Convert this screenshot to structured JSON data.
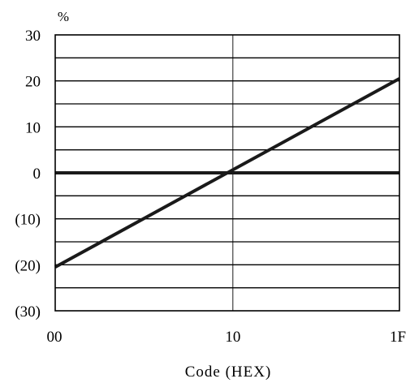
{
  "chart_data": {
    "type": "line",
    "unit_label": "%",
    "xlabel": "Code (HEX)",
    "x_ticks": [
      {
        "value": 0,
        "label": "00"
      },
      {
        "value": 16,
        "label": "10"
      },
      {
        "value": 31,
        "label": "1F"
      }
    ],
    "y_ticks": [
      {
        "value": 30,
        "label": "30"
      },
      {
        "value": 20,
        "label": "20"
      },
      {
        "value": 10,
        "label": "10"
      },
      {
        "value": 0,
        "label": "0"
      },
      {
        "value": -10,
        "label": "(10)"
      },
      {
        "value": -20,
        "label": "(20)"
      },
      {
        "value": -30,
        "label": "(30)"
      }
    ],
    "xlim": [
      0,
      31
    ],
    "ylim": [
      -30,
      30
    ],
    "grid": {
      "y_step": 5,
      "x_lines": [
        16
      ]
    },
    "reference_line_y": 0,
    "series": [
      {
        "x": [
          0,
          31
        ],
        "y": [
          -20.5,
          20.5
        ],
        "color": "#1a1a1a"
      }
    ]
  }
}
